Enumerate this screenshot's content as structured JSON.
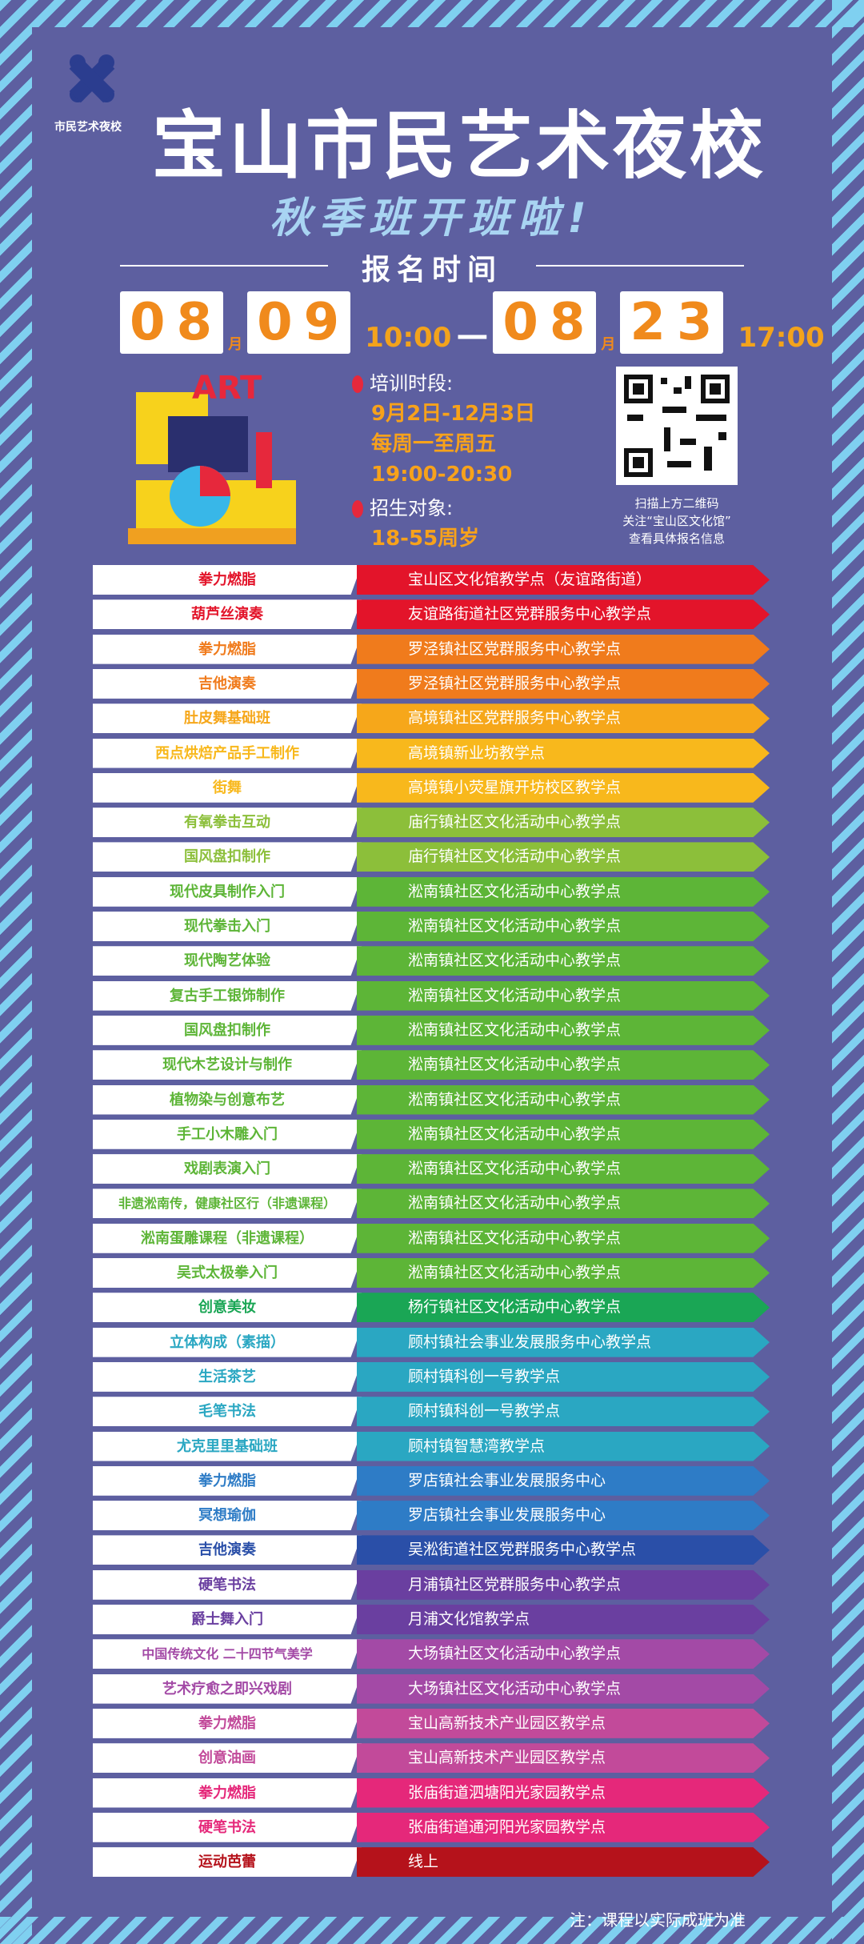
{
  "header": {
    "logo_text": "市民艺术夜校",
    "title": "宝山市民艺术夜校",
    "subtitle": "秋季班开班啦!",
    "registration_label": "报名时间",
    "start": {
      "month": "08",
      "month_unit": "月",
      "day": "09",
      "time": "10:00"
    },
    "dash": "—",
    "end": {
      "month": "08",
      "month_unit": "月",
      "day": "23",
      "time": "17:00"
    }
  },
  "info": {
    "art": "ART",
    "period_label": "培训时段:",
    "period_dates": "9月2日-12月3日",
    "period_days": "每周一至周五",
    "period_time": "19:00-20:30",
    "target_label": "招生对象:",
    "target_age": "18-55周岁",
    "qr_caption": [
      "扫描上方二维码",
      "关注“宝山区文化馆”",
      "查看具体报名信息"
    ]
  },
  "table": {
    "rows": [
      {
        "course": "拳力燃脂",
        "location": "宝山区文化馆教学点（友谊路街道）",
        "color": "#e3142a"
      },
      {
        "course": "葫芦丝演奏",
        "location": "友谊路街道社区党群服务中心教学点",
        "color": "#e3142a"
      },
      {
        "course": "拳力燃脂",
        "location": "罗泾镇社区党群服务中心教学点",
        "color": "#f07b1c"
      },
      {
        "course": "吉他演奏",
        "location": "罗泾镇社区党群服务中心教学点",
        "color": "#f07b1c"
      },
      {
        "course": "肚皮舞基础班",
        "location": "高境镇社区党群服务中心教学点",
        "color": "#f6a71a"
      },
      {
        "course": "西点烘焙产品手工制作",
        "location": "高境镇新业坊教学点",
        "color": "#f8b81c"
      },
      {
        "course": "街舞",
        "location": "高境镇小荧星旗开坊校区教学点",
        "color": "#f8b81c"
      },
      {
        "course": "有氧拳击互动",
        "location": "庙行镇社区文化活动中心教学点",
        "color": "#8cbf3a"
      },
      {
        "course": "国风盘扣制作",
        "location": "庙行镇社区文化活动中心教学点",
        "color": "#8cbf3a"
      },
      {
        "course": "现代皮具制作入门",
        "location": "淞南镇社区文化活动中心教学点",
        "color": "#5db537"
      },
      {
        "course": "现代拳击入门",
        "location": "淞南镇社区文化活动中心教学点",
        "color": "#5db537"
      },
      {
        "course": "现代陶艺体验",
        "location": "淞南镇社区文化活动中心教学点",
        "color": "#5db537"
      },
      {
        "course": "复古手工银饰制作",
        "location": "淞南镇社区文化活动中心教学点",
        "color": "#5db537"
      },
      {
        "course": "国风盘扣制作",
        "location": "淞南镇社区文化活动中心教学点",
        "color": "#5db537"
      },
      {
        "course": "现代木艺设计与制作",
        "location": "淞南镇社区文化活动中心教学点",
        "color": "#5db537"
      },
      {
        "course": "植物染与创意布艺",
        "location": "淞南镇社区文化活动中心教学点",
        "color": "#5db537"
      },
      {
        "course": "手工小木雕入门",
        "location": "淞南镇社区文化活动中心教学点",
        "color": "#5db537"
      },
      {
        "course": "戏剧表演入门",
        "location": "淞南镇社区文化活动中心教学点",
        "color": "#5db537"
      },
      {
        "course": "非遗淞南传，健康社区行（非遗课程）",
        "location": "淞南镇社区文化活动中心教学点",
        "color": "#5db537"
      },
      {
        "course": "淞南蛋雕课程（非遗课程）",
        "location": "淞南镇社区文化活动中心教学点",
        "color": "#5db537"
      },
      {
        "course": "吴式太极拳入门",
        "location": "淞南镇社区文化活动中心教学点",
        "color": "#5db537"
      },
      {
        "course": "创意美妆",
        "location": "杨行镇社区文化活动中心教学点",
        "color": "#1aa655"
      },
      {
        "course": "立体构成（素描）",
        "location": "顾村镇社会事业发展服务中心教学点",
        "color": "#2aa7c2"
      },
      {
        "course": "生活茶艺",
        "location": "顾村镇科创一号教学点",
        "color": "#2aa7c2"
      },
      {
        "course": "毛笔书法",
        "location": "顾村镇科创一号教学点",
        "color": "#2aa7c2"
      },
      {
        "course": "尤克里里基础班",
        "location": "顾村镇智慧湾教学点",
        "color": "#2aa7c2"
      },
      {
        "course": "拳力燃脂",
        "location": "罗店镇社会事业发展服务中心",
        "color": "#2e7cc6"
      },
      {
        "course": "冥想瑜伽",
        "location": "罗店镇社会事业发展服务中心",
        "color": "#2e7cc6"
      },
      {
        "course": "吉他演奏",
        "location": "吴淞街道社区党群服务中心教学点",
        "color": "#2a4fa8"
      },
      {
        "course": "硬笔书法",
        "location": "月浦镇社区党群服务中心教学点",
        "color": "#6a3fa0"
      },
      {
        "course": "爵士舞入门",
        "location": "月浦文化馆教学点",
        "color": "#6a3fa0"
      },
      {
        "course": "中国传统文化 二十四节气美学",
        "location": "大场镇社区文化活动中心教学点",
        "color": "#a34aa6"
      },
      {
        "course": "艺术疗愈之即兴戏剧",
        "location": "大场镇社区文化活动中心教学点",
        "color": "#a34aa6"
      },
      {
        "course": "拳力燃脂",
        "location": "宝山高新技术产业园区教学点",
        "color": "#c24a9a"
      },
      {
        "course": "创意油画",
        "location": "宝山高新技术产业园区教学点",
        "color": "#c24a9a"
      },
      {
        "course": "拳力燃脂",
        "location": "张庙街道泗塘阳光家园教学点",
        "color": "#e5287a"
      },
      {
        "course": "硬笔书法",
        "location": "张庙街道通河阳光家园教学点",
        "color": "#e5287a"
      },
      {
        "course": "运动芭蕾",
        "location": "线上",
        "color": "#b5121b"
      }
    ]
  },
  "footer": {
    "note": "注：课程以实际成班为准"
  }
}
